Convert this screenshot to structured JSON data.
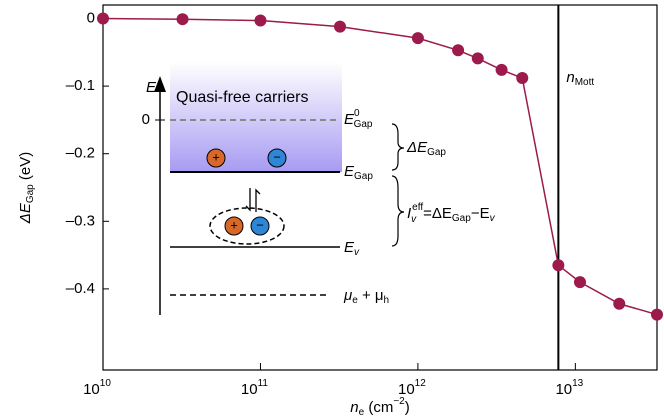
{
  "chart_data": {
    "type": "line",
    "x": [
      10000000000,
      32000000000,
      100000000000,
      320000000000,
      1000000000000,
      1800000000000,
      2400000000000,
      3400000000000,
      4600000000000,
      7800000000000,
      10700000000000,
      19000000000000,
      33000000000000
    ],
    "values": [
      0,
      -0.001,
      -0.003,
      -0.012,
      -0.029,
      -0.047,
      -0.059,
      -0.076,
      -0.088,
      -0.365,
      -0.39,
      -0.422,
      -0.438
    ],
    "color": "#9c1a4c",
    "x_log": true,
    "xlim": [
      10000000000,
      33000000000000
    ],
    "ylim": [
      -0.52,
      0.02
    ],
    "xticks": [
      {
        "value": 10000000000,
        "label": "10",
        "exponent": "10"
      },
      {
        "value": 100000000000,
        "label": "10",
        "exponent": "11"
      },
      {
        "value": 1000000000000,
        "label": "10",
        "exponent": "12"
      },
      {
        "value": 10000000000000,
        "label": "10",
        "exponent": "13"
      }
    ],
    "yticks": [
      0,
      {
        "value": -0.1,
        "label": "–0.1"
      },
      {
        "value": -0.2,
        "label": "–0.2"
      },
      {
        "value": -0.3,
        "label": "–0.3"
      },
      {
        "value": -0.4,
        "label": "–0.4"
      }
    ],
    "x_label": [
      "n",
      "e",
      " (cm",
      "−2",
      ")"
    ],
    "y_label": [
      "ΔE",
      "Gap",
      " (eV)"
    ],
    "mott": {
      "x": 7800000000000,
      "label": [
        "n",
        "Mott"
      ]
    }
  },
  "inset": {
    "axis": "E",
    "zero": "0",
    "band": "Quasi-free carriers",
    "e0gap": [
      "E",
      "0",
      "Gap"
    ],
    "egap": [
      "E",
      "Gap"
    ],
    "ev": [
      "E",
      "v"
    ],
    "mu": [
      "μ",
      "e",
      " + μ",
      "h"
    ],
    "delta": [
      "ΔE",
      "Gap"
    ],
    "ieff": [
      "I",
      "v",
      "eff",
      "=ΔE",
      "Gap",
      "−E",
      "v"
    ],
    "plus": "+",
    "minus": "−"
  }
}
